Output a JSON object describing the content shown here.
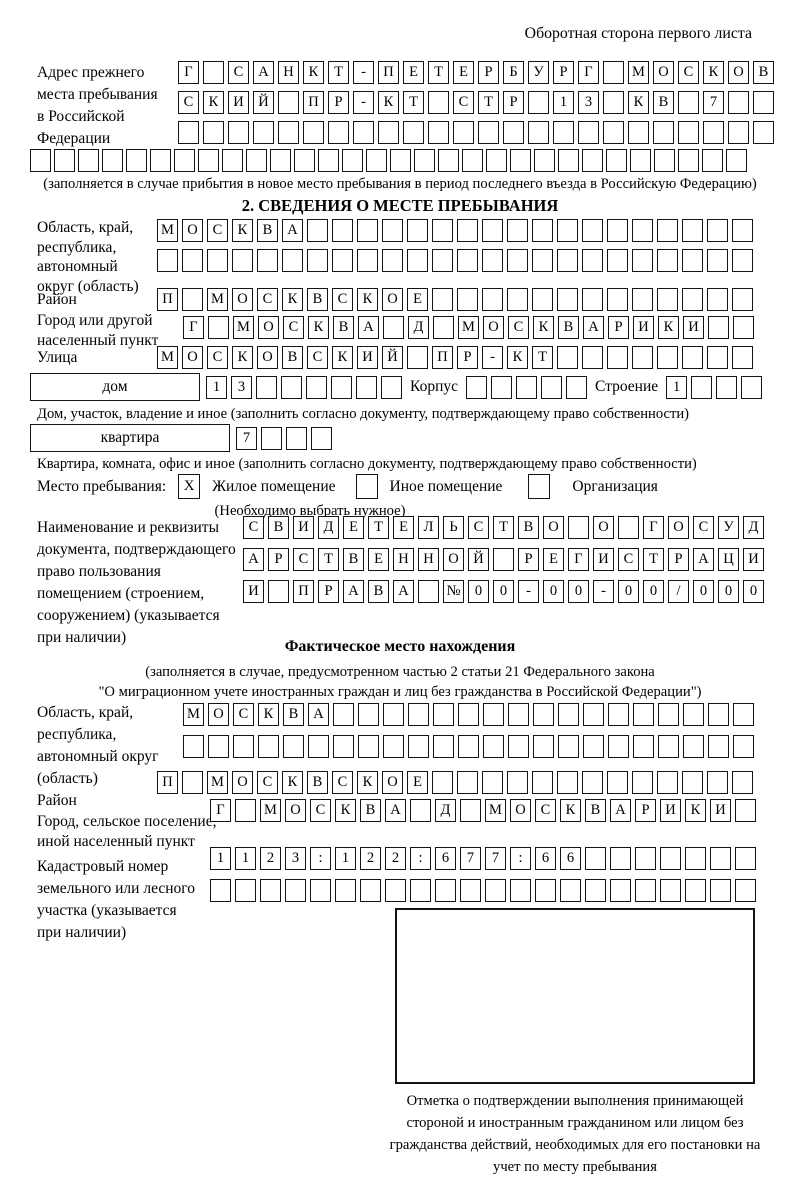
{
  "page": {
    "side_note": "Оборотная сторона первого листа"
  },
  "prev_address": {
    "label": "Адрес прежнего места пребывания в Российской Федерации",
    "rows": [
      "Г САНКТ-ПЕТЕРБУРГ МОСКОВ",
      "СКИЙ ПР-КТ СТР 13 КВ 7",
      "",
      ""
    ],
    "note": "(заполняется в случае прибытия в новое место пребывания в период последнего въезда в Российскую Федерацию)"
  },
  "section2": {
    "title": "2. СВЕДЕНИЯ О МЕСТЕ ПРЕБЫВАНИЯ",
    "region": {
      "label": "Область, край, республика, автономный округ (область)",
      "rows": [
        "МОСКВА",
        ""
      ]
    },
    "district": {
      "label": "Район",
      "value": "П МОСКВСКОЕ"
    },
    "city": {
      "label": "Город или другой населенный пункт",
      "value": "Г МОСКВА Д МОСКВАРИКИ"
    },
    "street": {
      "label": "Улица",
      "value": "МОСКОВСКИЙ ПР-КТ"
    },
    "house": {
      "box_label": "дом",
      "value": "13",
      "korpus_label": "Корпус",
      "korpus_value": "",
      "stroenie_label": "Строение",
      "stroenie_value": "1",
      "note": "Дом, участок, владение и иное (заполнить согласно документу, подтверждающему право собственности)"
    },
    "apartment": {
      "box_label": "квартира",
      "value": "7",
      "note": "Квартира, комната, офис и иное (заполнить согласно документу, подтверждающему право собственности)"
    },
    "stay_type": {
      "label": "Место пребывания:",
      "options": [
        {
          "label": "Жилое помещение",
          "checked": "X"
        },
        {
          "label": "Иное помещение",
          "checked": ""
        },
        {
          "label": "Организация",
          "checked": ""
        }
      ],
      "note": "(Необходимо выбрать нужное)"
    },
    "doc": {
      "label": "Наименование и реквизиты документа, подтверждающего право пользования помещением (строением, сооружением) (указывается при наличии)",
      "rows": [
        "СВИДЕТЕЛЬСТВО О ГОСУД",
        "АРСТВЕННОЙ РЕГИСТРАЦИ",
        "И ПРАВА №00-00-00/000"
      ]
    }
  },
  "actual_location": {
    "title": "Фактическое место нахождения",
    "note_line1": "(заполняется в случае, предусмотренном частью 2 статьи 21 Федерального закона",
    "note_line2": "\"О миграционном учете иностранных граждан и лиц без гражданства в Российской Федерации\")",
    "region": {
      "label": "Область, край, республика, автономный округ (область)",
      "rows": [
        "МОСКВА",
        ""
      ]
    },
    "district": {
      "label": "Район",
      "value": "П МОСКВСКОЕ"
    },
    "city": {
      "label": "Город, сельское поселение, иной населенный пункт",
      "value": "Г МОСКВА Д МОСКВАРИКИ"
    },
    "cadastre": {
      "label": "Кадастровый номер земельного или лесного участка (указывается при наличии)",
      "rows": [
        "1123:122:677:66",
        ""
      ]
    },
    "stamp_note": "Отметка о подтверждении выполнения принимающей стороной и иностранным гражданином или лицом без гражданства действий, необходимых для его постановки на учет по месту пребывания"
  }
}
